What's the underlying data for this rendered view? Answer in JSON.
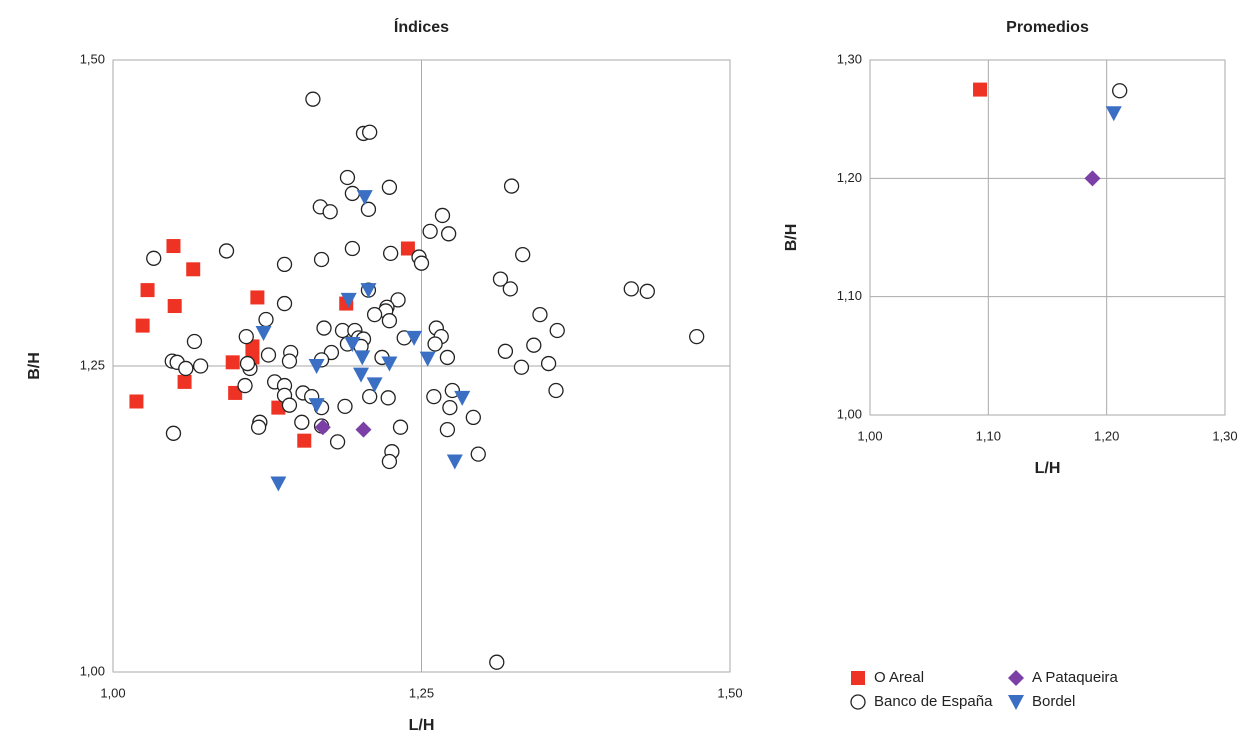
{
  "chart_data": [
    {
      "type": "scatter",
      "title": "Índices",
      "xlabel": "L/H",
      "ylabel": "B/H",
      "xlim": [
        1.0,
        1.5
      ],
      "ylim": [
        1.0,
        1.5
      ],
      "xticks": [
        {
          "value": 1.0,
          "label": "1,00"
        },
        {
          "value": 1.25,
          "label": "1,25"
        },
        {
          "value": 1.5,
          "label": "1,50"
        }
      ],
      "yticks": [
        {
          "value": 1.0,
          "label": "1,00"
        },
        {
          "value": 1.25,
          "label": "1,25"
        },
        {
          "value": 1.5,
          "label": "1,50"
        }
      ],
      "grid": true,
      "series": [
        {
          "color": "#ee3324",
          "marker": "square",
          "x": [
            1.049,
            1.028,
            1.065,
            1.024,
            1.05,
            1.117,
            1.097,
            1.113,
            1.113,
            1.058,
            1.099,
            1.019,
            1.134,
            1.155,
            1.189,
            1.239
          ],
          "values": [
            1.348,
            1.312,
            1.329,
            1.283,
            1.299,
            1.306,
            1.253,
            1.266,
            1.257,
            1.237,
            1.228,
            1.221,
            1.216,
            1.189,
            1.301,
            1.346
          ]
        },
        {
          "color": "#222222",
          "marker": "circle",
          "x": [
            1.162,
            1.203,
            1.208,
            1.19,
            1.224,
            1.194,
            1.323,
            1.168,
            1.176,
            1.207,
            1.267,
            1.272,
            1.257,
            1.194,
            1.225,
            1.092,
            1.033,
            1.139,
            1.169,
            1.248,
            1.25,
            1.314,
            1.322,
            1.332,
            1.42,
            1.433,
            1.207,
            1.231,
            1.222,
            1.124,
            1.139,
            1.221,
            1.224,
            1.346,
            1.36,
            1.473,
            1.066,
            1.108,
            1.171,
            1.186,
            1.196,
            1.199,
            1.19,
            1.203,
            1.201,
            1.236,
            1.262,
            1.266,
            1.261,
            1.318,
            1.341,
            1.144,
            1.143,
            1.177,
            1.169,
            1.048,
            1.052,
            1.059,
            1.071,
            1.111,
            1.109,
            1.131,
            1.107,
            1.139,
            1.139,
            1.218,
            1.271,
            1.331,
            1.353,
            1.359,
            1.275,
            1.273,
            1.154,
            1.143,
            1.161,
            1.169,
            1.153,
            1.169,
            1.188,
            1.208,
            1.223,
            1.26,
            1.292,
            1.119,
            1.118,
            1.049,
            1.182,
            1.233,
            1.271,
            1.226,
            1.224,
            1.296,
            1.311,
            1.126,
            1.212
          ],
          "values": [
            1.468,
            1.44,
            1.441,
            1.404,
            1.396,
            1.391,
            1.397,
            1.38,
            1.376,
            1.378,
            1.373,
            1.358,
            1.36,
            1.346,
            1.342,
            1.344,
            1.338,
            1.333,
            1.337,
            1.339,
            1.334,
            1.321,
            1.313,
            1.341,
            1.313,
            1.311,
            1.312,
            1.304,
            1.298,
            1.288,
            1.301,
            1.295,
            1.287,
            1.292,
            1.279,
            1.274,
            1.27,
            1.274,
            1.281,
            1.279,
            1.279,
            1.273,
            1.268,
            1.272,
            1.266,
            1.273,
            1.281,
            1.274,
            1.268,
            1.262,
            1.267,
            1.261,
            1.254,
            1.261,
            1.255,
            1.254,
            1.253,
            1.248,
            1.25,
            1.248,
            1.252,
            1.237,
            1.234,
            1.234,
            1.226,
            1.257,
            1.257,
            1.249,
            1.252,
            1.23,
            1.23,
            1.216,
            1.228,
            1.218,
            1.225,
            1.216,
            1.204,
            1.201,
            1.217,
            1.225,
            1.224,
            1.225,
            1.208,
            1.204,
            1.2,
            1.195,
            1.188,
            1.2,
            1.198,
            1.18,
            1.172,
            1.178,
            1.008,
            1.259,
            1.292
          ]
        },
        {
          "color": "#7b3fa6",
          "marker": "diamond",
          "x": [
            1.17,
            1.203
          ],
          "values": [
            1.2,
            1.198
          ]
        },
        {
          "color": "#3a6fc4",
          "marker": "triangle",
          "x": [
            1.204,
            1.191,
            1.207,
            1.122,
            1.244,
            1.165,
            1.202,
            1.255,
            1.224,
            1.201,
            1.212,
            1.165,
            1.283,
            1.134,
            1.277,
            1.194
          ],
          "values": [
            1.388,
            1.304,
            1.312,
            1.277,
            1.273,
            1.25,
            1.257,
            1.256,
            1.252,
            1.243,
            1.235,
            1.218,
            1.224,
            1.154,
            1.172,
            1.268
          ]
        }
      ]
    },
    {
      "type": "scatter",
      "title": "Promedios",
      "xlabel": "L/H",
      "ylabel": "B/H",
      "xlim": [
        1.0,
        1.3
      ],
      "ylim": [
        1.0,
        1.3
      ],
      "xticks": [
        {
          "value": 1.0,
          "label": "1,00"
        },
        {
          "value": 1.1,
          "label": "1,10"
        },
        {
          "value": 1.2,
          "label": "1,20"
        },
        {
          "value": 1.3,
          "label": "1,30"
        }
      ],
      "yticks": [
        {
          "value": 1.0,
          "label": "1,00"
        },
        {
          "value": 1.1,
          "label": "1,10"
        },
        {
          "value": 1.2,
          "label": "1,20"
        },
        {
          "value": 1.3,
          "label": "1,30"
        }
      ],
      "grid": true,
      "legend": "bottom",
      "series": [
        {
          "name": "O Areal",
          "color": "#ee3324",
          "marker": "square",
          "x": [
            1.093
          ],
          "values": [
            1.275
          ]
        },
        {
          "name": "Banco de España",
          "color": "#222222",
          "marker": "circle",
          "x": [
            1.211
          ],
          "values": [
            1.274
          ]
        },
        {
          "name": "A Pataqueira",
          "color": "#7b3fa6",
          "marker": "diamond",
          "x": [
            1.188
          ],
          "values": [
            1.2
          ]
        },
        {
          "name": "Bordel",
          "color": "#3a6fc4",
          "marker": "triangle",
          "x": [
            1.206
          ],
          "values": [
            1.255
          ]
        }
      ]
    }
  ]
}
